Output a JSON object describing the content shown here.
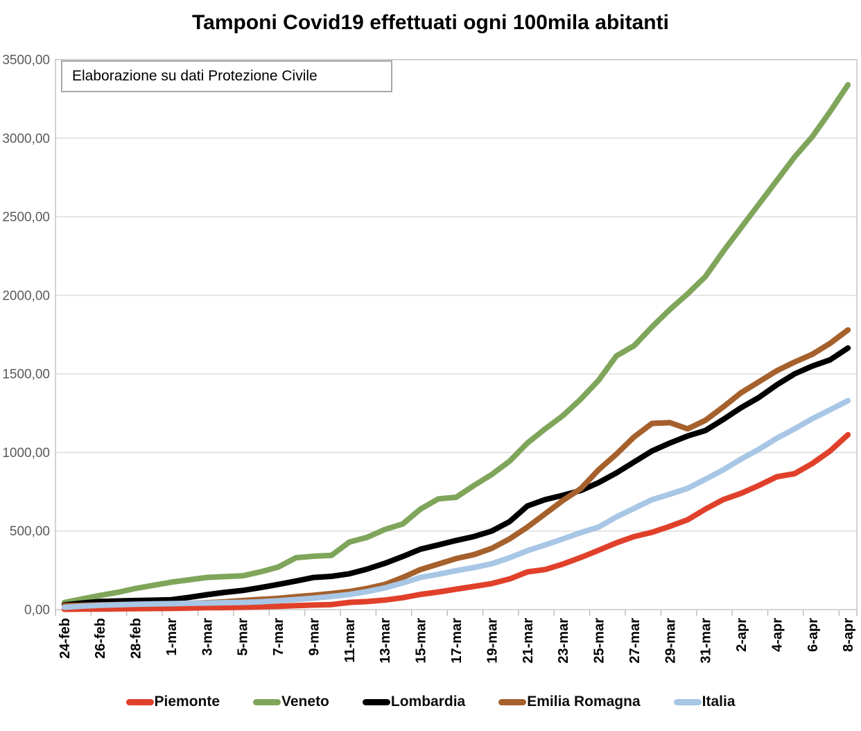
{
  "page": {
    "title": "Tamponi Covid19 effettuati ogni 100mila abitanti",
    "annotation": "Elaborazione su dati Protezione Civile"
  },
  "chart_data": {
    "type": "line",
    "title": "Tamponi Covid19 effettuati ogni 100mila abitanti",
    "annotation": "Elaborazione su dati Protezione Civile",
    "x_description": "daily dates from 24-feb to 8-apr (45 points), axis labels every 2 days",
    "n_points": 45,
    "x_labels_shown": [
      "24-feb",
      "26-feb",
      "28-feb",
      "1-mar",
      "3-mar",
      "5-mar",
      "7-mar",
      "9-mar",
      "11-mar",
      "13-mar",
      "15-mar",
      "17-mar",
      "19-mar",
      "21-mar",
      "23-mar",
      "25-mar",
      "27-mar",
      "29-mar",
      "31-mar",
      "2-apr",
      "4-apr",
      "6-apr",
      "8-apr"
    ],
    "ylim": [
      0,
      3500
    ],
    "y_tick_labels": [
      "0,00",
      "500,00",
      "1000,00",
      "1500,00",
      "2000,00",
      "2500,00",
      "3000,00",
      "3500,00"
    ],
    "grid": "horizontal",
    "legend_position": "bottom",
    "colors": {
      "gridline": "#dcdcdc",
      "plot_border": "#c6c6c6",
      "axis_tick": "#bfbfbf",
      "y_label_text": "#595959",
      "x_label_text": "#000000"
    },
    "series": [
      {
        "name": "Piemonte",
        "color": "#e0402a",
        "values": [
          2,
          3,
          4,
          5,
          6,
          7,
          8,
          10,
          12,
          13,
          15,
          18,
          21,
          25,
          29,
          32,
          46,
          51,
          61,
          76,
          97,
          112,
          130,
          148,
          166,
          195,
          240,
          255,
          290,
          332,
          378,
          425,
          465,
          492,
          530,
          572,
          640,
          700,
          740,
          790,
          845,
          865,
          930,
          1010,
          1113
        ]
      },
      {
        "name": "Veneto",
        "color": "#7fa55a",
        "values": [
          45,
          68,
          90,
          110,
          135,
          155,
          175,
          190,
          205,
          210,
          215,
          240,
          270,
          330,
          340,
          345,
          430,
          460,
          510,
          545,
          640,
          705,
          715,
          790,
          860,
          945,
          1060,
          1150,
          1235,
          1340,
          1460,
          1615,
          1680,
          1800,
          1910,
          2010,
          2120,
          2280,
          2430,
          2580,
          2730,
          2880,
          3010,
          3170,
          3340
        ]
      },
      {
        "name": "Lombardia",
        "color": "#000000",
        "values": [
          30,
          42,
          52,
          55,
          58,
          60,
          63,
          78,
          95,
          110,
          122,
          140,
          160,
          182,
          205,
          212,
          228,
          258,
          295,
          338,
          385,
          412,
          440,
          465,
          500,
          560,
          660,
          700,
          728,
          758,
          808,
          870,
          940,
          1010,
          1060,
          1105,
          1140,
          1210,
          1285,
          1350,
          1430,
          1500,
          1550,
          1590,
          1665
        ]
      },
      {
        "name": "Emilia Romagna",
        "color": "#a5602c",
        "values": [
          25,
          28,
          30,
          32,
          33,
          35,
          36,
          40,
          44,
          50,
          58,
          65,
          72,
          82,
          92,
          103,
          115,
          135,
          160,
          205,
          255,
          290,
          325,
          350,
          390,
          450,
          525,
          610,
          695,
          770,
          890,
          990,
          1100,
          1185,
          1190,
          1150,
          1205,
          1290,
          1380,
          1450,
          1520,
          1575,
          1625,
          1695,
          1780
        ]
      },
      {
        "name": "Italia",
        "color": "#a8c6e5",
        "values": [
          15,
          22,
          28,
          31,
          34,
          36,
          38,
          40,
          42,
          44,
          46,
          50,
          56,
          64,
          73,
          84,
          96,
          115,
          138,
          170,
          205,
          225,
          248,
          268,
          292,
          330,
          375,
          412,
          450,
          490,
          525,
          590,
          645,
          700,
          735,
          772,
          830,
          890,
          958,
          1020,
          1090,
          1150,
          1215,
          1272,
          1330
        ]
      }
    ]
  }
}
